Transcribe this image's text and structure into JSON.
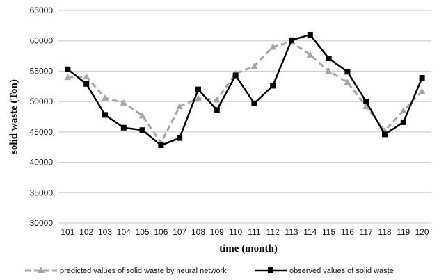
{
  "chart_data": {
    "type": "line",
    "title": "",
    "xlabel": "time  (month)",
    "ylabel": "solid waste (Ton)",
    "categories": [
      "101",
      "102",
      "103",
      "104",
      "105",
      "106",
      "107",
      "108",
      "109",
      "110",
      "111",
      "112",
      "113",
      "114",
      "115",
      "116",
      "117",
      "118",
      "119",
      "120"
    ],
    "ylim": [
      30000,
      65000
    ],
    "yticks": [
      "30000",
      "35000",
      "40000",
      "45000",
      "50000",
      "55000",
      "60000",
      "65000"
    ],
    "grid": "horizontal",
    "legend_position": "bottom",
    "series": [
      {
        "name": "predicted values of solid waste by neural network",
        "style": "dashed",
        "marker": "triangle",
        "color": "#a6a6a6",
        "values": [
          54000,
          54100,
          50600,
          49800,
          47700,
          43200,
          49200,
          50500,
          50300,
          54600,
          55800,
          59000,
          59800,
          57700,
          55000,
          53200,
          49200,
          45200,
          48500,
          51700
        ]
      },
      {
        "name": "observed values of solid waste",
        "style": "solid",
        "marker": "square",
        "color": "#000000",
        "values": [
          55300,
          52900,
          47800,
          45700,
          45300,
          42800,
          44000,
          52000,
          48600,
          54300,
          49700,
          52600,
          60100,
          61000,
          57100,
          54900,
          50000,
          44600,
          46600,
          53900
        ]
      }
    ]
  }
}
